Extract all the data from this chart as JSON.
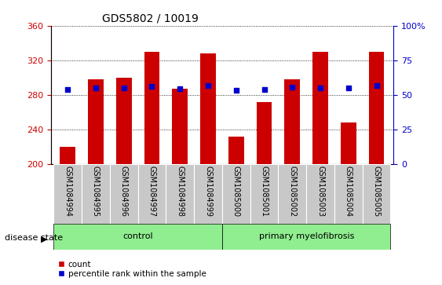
{
  "title": "GDS5802 / 10019",
  "samples": [
    "GSM1084994",
    "GSM1084995",
    "GSM1084996",
    "GSM1084997",
    "GSM1084998",
    "GSM1084999",
    "GSM1085000",
    "GSM1085001",
    "GSM1085002",
    "GSM1085003",
    "GSM1085004",
    "GSM1085005"
  ],
  "bar_heights": [
    220,
    298,
    300,
    330,
    287,
    328,
    232,
    272,
    298,
    330,
    248,
    330
  ],
  "percentile_values": [
    286,
    288,
    288,
    290,
    287,
    291,
    285,
    286,
    289,
    288,
    288,
    291
  ],
  "bar_color": "#cc0000",
  "percentile_color": "#0000cc",
  "ylim_left": [
    200,
    360
  ],
  "ylim_right": [
    0,
    100
  ],
  "yticks_left": [
    200,
    240,
    280,
    320,
    360
  ],
  "yticks_right": [
    0,
    25,
    50,
    75,
    100
  ],
  "ytick_right_labels": [
    "0",
    "25",
    "50",
    "75",
    "100%"
  ],
  "groups": [
    {
      "label": "control",
      "start": 0,
      "end": 6,
      "color": "#90ee90"
    },
    {
      "label": "primary myelofibrosis",
      "start": 6,
      "end": 12,
      "color": "#90ee90"
    }
  ],
  "disease_state_label": "disease state",
  "legend_count_label": "count",
  "legend_percentile_label": "percentile rank within the sample",
  "tick_label_bg": "#c8c8c8",
  "title_fontsize": 10,
  "tick_fontsize": 8,
  "label_fontsize": 7
}
